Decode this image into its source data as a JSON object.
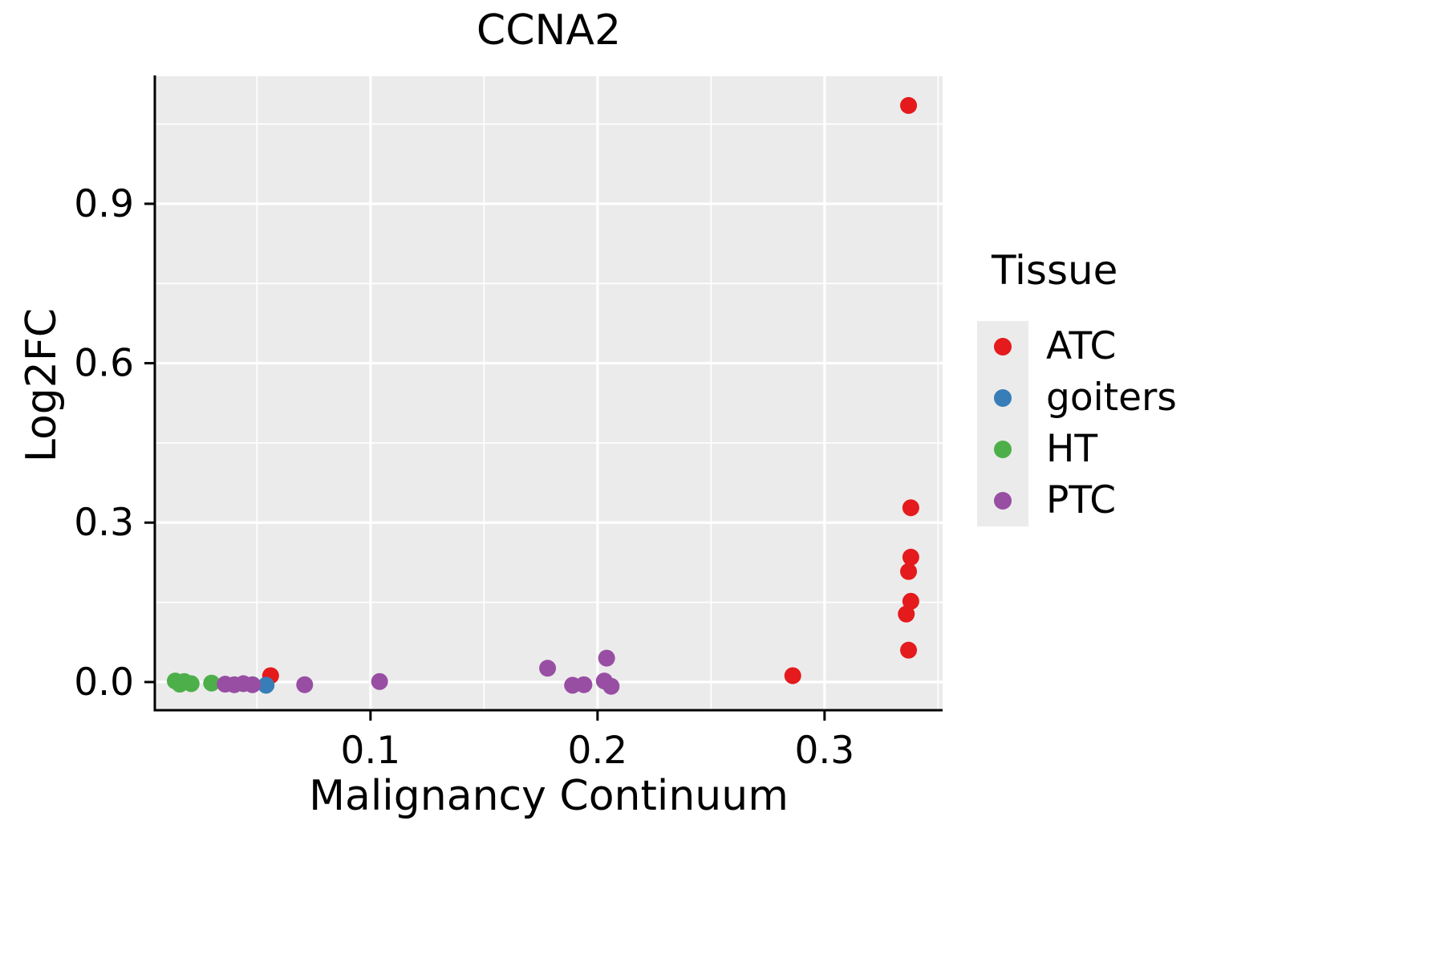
{
  "chart_data": {
    "type": "scatter",
    "title": "CCNA2",
    "xlabel": "Malignancy Continuum",
    "ylabel": "Log2FC",
    "legend_title": "Tissue",
    "legend_position": "right",
    "panel_bg": "#EBEBEB",
    "grid_color": "#FFFFFF",
    "axis_color": "#000000",
    "xlim": [
      0.005,
      0.352
    ],
    "ylim": [
      -0.053,
      1.14
    ],
    "x_ticks": [
      {
        "v": 0.1,
        "label": "0.1"
      },
      {
        "v": 0.2,
        "label": "0.2"
      },
      {
        "v": 0.3,
        "label": "0.3"
      }
    ],
    "y_ticks": [
      {
        "v": 0.0,
        "label": "0.0"
      },
      {
        "v": 0.3,
        "label": "0.3"
      },
      {
        "v": 0.6,
        "label": "0.6"
      },
      {
        "v": 0.9,
        "label": "0.9"
      }
    ],
    "x_minor": [
      0.05,
      0.15,
      0.25,
      0.35
    ],
    "y_minor": [
      0.15,
      0.45,
      0.75,
      1.05
    ],
    "series": [
      {
        "name": "ATC",
        "color": "#E41A1C",
        "points": [
          [
            0.056,
            0.012
          ],
          [
            0.286,
            0.012
          ],
          [
            0.337,
            1.085
          ],
          [
            0.338,
            0.328
          ],
          [
            0.338,
            0.235
          ],
          [
            0.337,
            0.208
          ],
          [
            0.338,
            0.152
          ],
          [
            0.336,
            0.128
          ],
          [
            0.337,
            0.06
          ]
        ]
      },
      {
        "name": "goiters",
        "color": "#377EB8",
        "points": [
          [
            0.054,
            -0.006
          ]
        ]
      },
      {
        "name": "HT",
        "color": "#4DAF4A",
        "points": [
          [
            0.014,
            0.002
          ],
          [
            0.016,
            -0.004
          ],
          [
            0.018,
            0.001
          ],
          [
            0.021,
            -0.003
          ],
          [
            0.03,
            -0.002
          ]
        ]
      },
      {
        "name": "PTC",
        "color": "#984EA3",
        "points": [
          [
            0.036,
            -0.004
          ],
          [
            0.04,
            -0.005
          ],
          [
            0.044,
            -0.003
          ],
          [
            0.048,
            -0.005
          ],
          [
            0.071,
            -0.005
          ],
          [
            0.104,
            0.001
          ],
          [
            0.178,
            0.026
          ],
          [
            0.189,
            -0.006
          ],
          [
            0.194,
            -0.005
          ],
          [
            0.203,
            0.002
          ],
          [
            0.204,
            0.045
          ],
          [
            0.206,
            -0.008
          ]
        ]
      }
    ]
  }
}
